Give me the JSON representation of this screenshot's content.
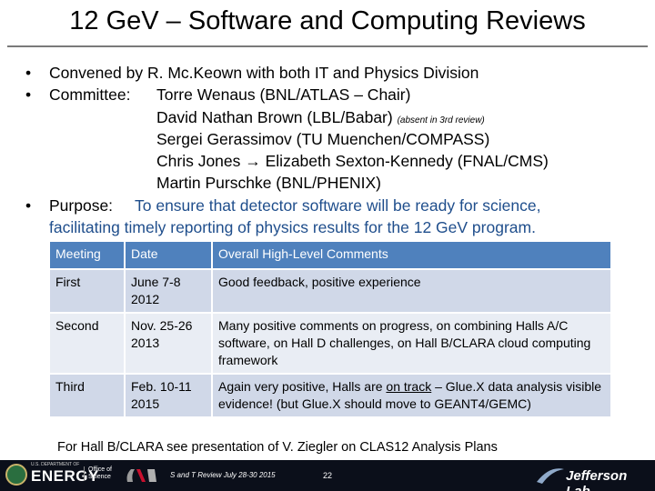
{
  "title": "12 GeV – Software and Computing Reviews",
  "bullets": {
    "bullet_char": "•",
    "convened": "Convened by R. Mc.Keown with both IT and Physics Division",
    "committee_label": "Committee:",
    "members": [
      "Torre Wenaus (BNL/ATLAS – Chair)",
      "David Nathan Brown (LBL/Babar)",
      "Sergei Gerassimov (TU Muenchen/COMPASS)",
      "Chris Jones → Elizabeth Sexton-Kennedy (FNAL/CMS)",
      "Martin Purschke (BNL/PHENIX)"
    ],
    "absent_note": "(absent in 3rd review)",
    "purpose_label": "Purpose:",
    "purpose_text_1": "To ensure that detector software will be ready for science,",
    "purpose_text_2": "facilitating timely reporting of physics results for the 12 GeV program."
  },
  "table": {
    "headers": [
      "Meeting",
      "Date",
      "Overall High-Level Comments"
    ],
    "rows": [
      {
        "meeting": "First",
        "date": "June 7-8 2012",
        "comments": "Good feedback, positive experience"
      },
      {
        "meeting": "Second",
        "date": "Nov. 25-26 2013",
        "comments": "Many positive comments on progress, on combining Halls A/C software, on Hall D challenges, on Hall B/CLARA cloud computing framework"
      },
      {
        "meeting": "Third",
        "date": "Feb. 10-11 2015",
        "comments_pre": "Again very positive, Halls are ",
        "comments_underlined": "on track",
        "comments_post": " – Glue.X data analysis visible evidence! (but Glue.X should move to GEANT4/GEMC)"
      }
    ]
  },
  "footer_note": "For Hall B/CLARA see presentation of V. Ziegler on CLAS12 Analysis Plans",
  "footer": {
    "doe_small": "U.S. DEPARTMENT OF",
    "doe": "ENERGY",
    "office_of": "Office of",
    "science": "Science",
    "slide_ref": "S and T Review July 28-30 2015",
    "page": "22",
    "jlab": "Jefferson Lab"
  },
  "colors": {
    "header": "#4f81bd",
    "row_dark": "#d0d8e8",
    "row_light": "#e9edf4",
    "purpose_blue": "#1f4e8c",
    "footer_bar": "#0b0f1a"
  }
}
